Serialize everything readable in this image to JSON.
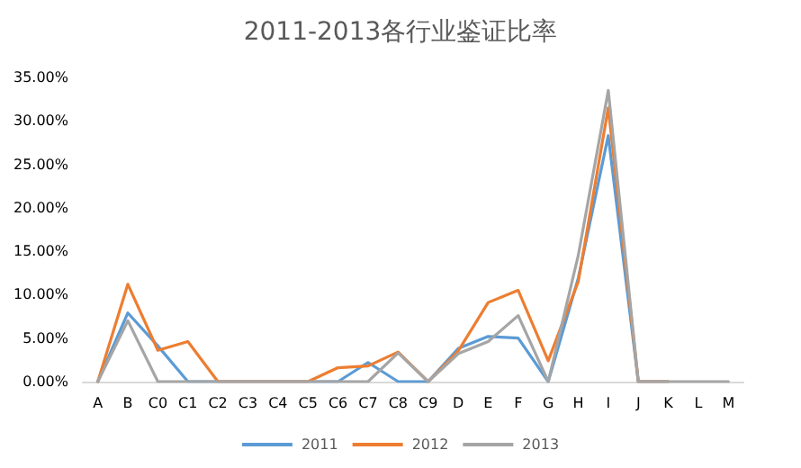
{
  "chart_data": {
    "type": "line",
    "title": "2011-2013各行业鉴证比率",
    "categories": [
      "A",
      "B",
      "C0",
      "C1",
      "C2",
      "C3",
      "C4",
      "C5",
      "C6",
      "C7",
      "C8",
      "C9",
      "D",
      "E",
      "F",
      "G",
      "H",
      "I",
      "J",
      "K",
      "L",
      "M"
    ],
    "series": [
      {
        "name": "2011",
        "color": "#5b9bd5",
        "values": [
          0,
          7.9,
          4.1,
          0,
          0,
          0,
          0,
          0,
          0,
          2.2,
          0,
          0,
          3.8,
          5.2,
          5.0,
          0,
          11.9,
          28.3,
          0,
          0,
          null,
          null
        ]
      },
      {
        "name": "2012",
        "color": "#ed7d31",
        "values": [
          0,
          11.2,
          3.6,
          4.6,
          0,
          0,
          0,
          0,
          1.6,
          1.8,
          3.4,
          0,
          3.5,
          9.1,
          10.5,
          2.4,
          11.5,
          31.5,
          0,
          0,
          null,
          null
        ]
      },
      {
        "name": "2013",
        "color": "#a5a5a5",
        "values": [
          0,
          7.0,
          0,
          0,
          0,
          0,
          0,
          0,
          0,
          0,
          3.3,
          0,
          3.2,
          4.6,
          7.6,
          0,
          14.5,
          33.5,
          0,
          0,
          0,
          0
        ]
      }
    ],
    "ylim": [
      0,
      35
    ],
    "yticks": [
      {
        "value": 0,
        "label": "0.00%"
      },
      {
        "value": 5,
        "label": "5.00%"
      },
      {
        "value": 10,
        "label": "10.00%"
      },
      {
        "value": 15,
        "label": "15.00%"
      },
      {
        "value": 20,
        "label": "20.00%"
      },
      {
        "value": 25,
        "label": "25.00%"
      },
      {
        "value": 30,
        "label": "30.00%"
      },
      {
        "value": 35,
        "label": "35.00%"
      }
    ],
    "legend": "bottom",
    "marker": "none",
    "line_style": "solid"
  }
}
